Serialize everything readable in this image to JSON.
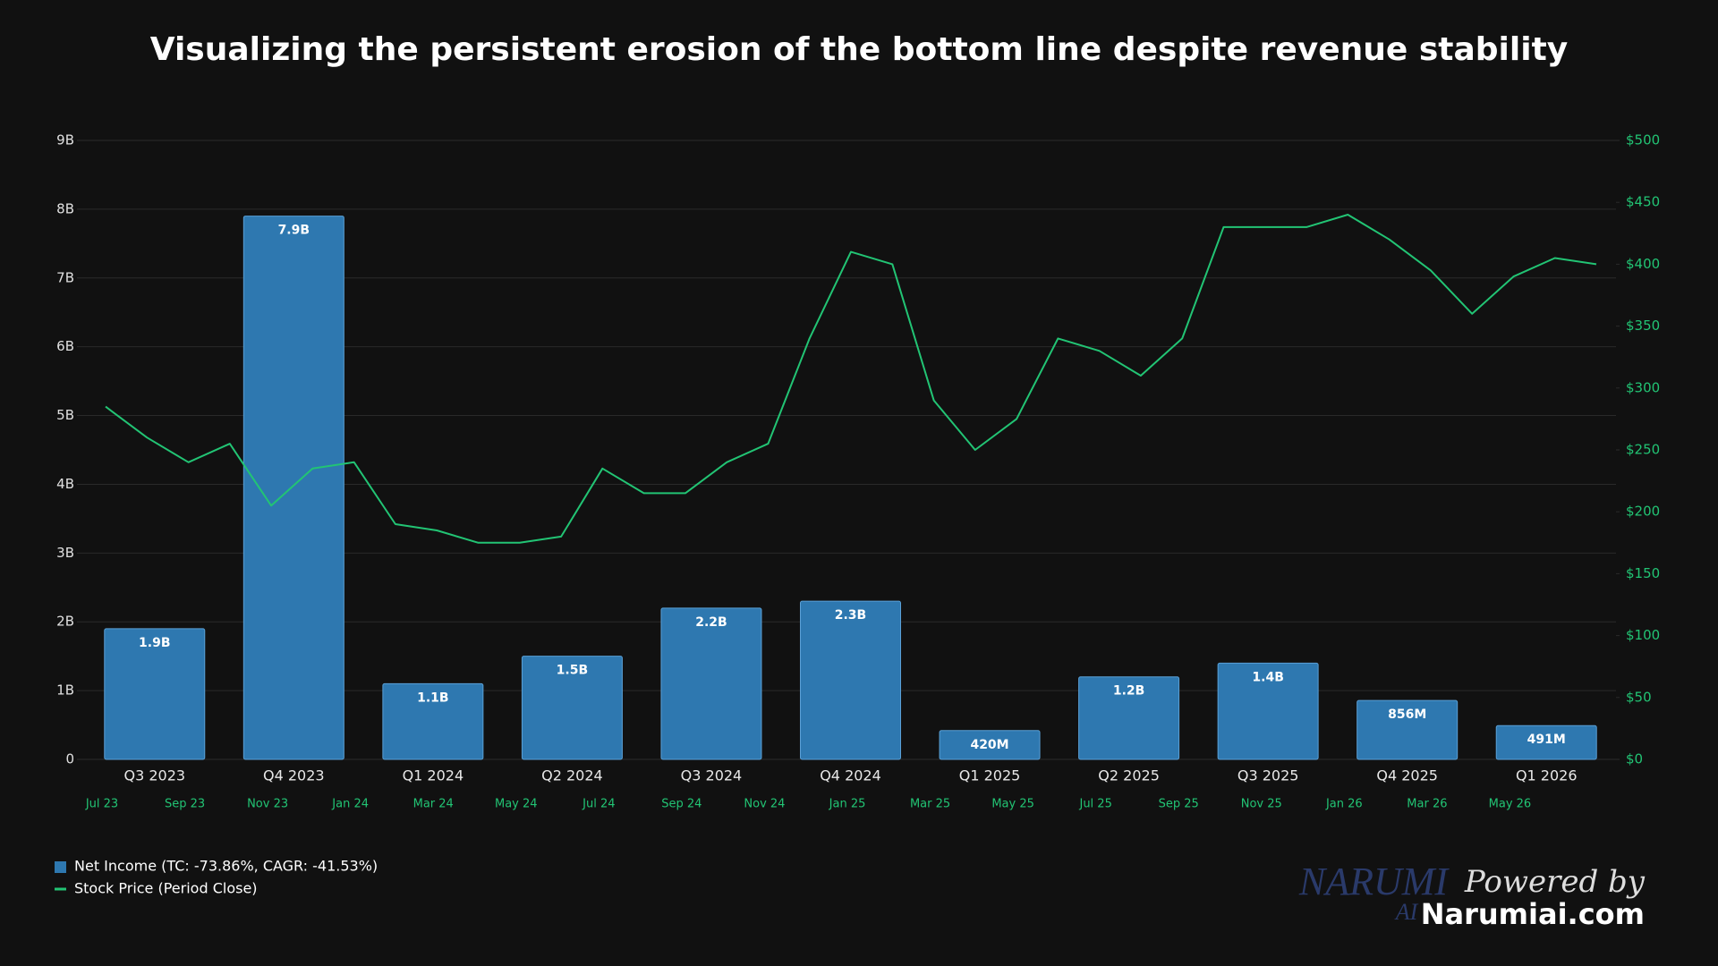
{
  "chart_data": {
    "type": "bar",
    "title": "Visualizing the persistent erosion of the bottom line despite revenue stability",
    "categories": [
      "Q3 2023",
      "Q4 2023",
      "Q1 2024",
      "Q2 2024",
      "Q3 2024",
      "Q4 2024",
      "Q1 2025",
      "Q2 2025",
      "Q3 2025",
      "Q4 2025",
      "Q1 2026"
    ],
    "series": [
      {
        "name": "Net Income (TC: -73.86%, CAGR: -41.53%)",
        "color": "#2e78b0",
        "values": [
          1900000000,
          7900000000,
          1100000000,
          1500000000,
          2200000000,
          2300000000,
          420000000,
          1200000000,
          1400000000,
          856000000,
          491000000
        ],
        "value_labels": [
          "1.9B",
          "7.9B",
          "1.1B",
          "1.5B",
          "2.2B",
          "2.3B",
          "420M",
          "1.2B",
          "1.4B",
          "856M",
          "491M"
        ]
      },
      {
        "name": "Stock Price (Period Close)",
        "type": "line",
        "axis": "y2",
        "color": "#22c474",
        "x": [
          "Jul 23",
          null,
          "Sep 23",
          null,
          "Nov 23",
          null,
          "Jan 24",
          null,
          "Mar 24",
          null,
          "May 24",
          null,
          "Jul 24",
          null,
          "Sep 24",
          null,
          "Nov 24",
          null,
          "Jan 25",
          null,
          "Mar 25",
          null,
          "May 25",
          null,
          "Jul 25",
          null,
          "Sep 25",
          null,
          "Nov 25",
          null,
          "Jan 26",
          null,
          "Mar 26",
          null,
          "May 26",
          null,
          null
        ],
        "values": [
          285,
          260,
          240,
          255,
          205,
          235,
          240,
          190,
          185,
          175,
          175,
          180,
          235,
          215,
          215,
          240,
          255,
          340,
          410,
          400,
          290,
          250,
          275,
          340,
          330,
          310,
          340,
          430,
          430,
          430,
          440,
          420,
          395,
          360,
          390,
          405,
          400
        ]
      }
    ],
    "ylim": [
      0,
      9000000000
    ],
    "yticks": [
      0,
      {
        "value": 1000000000,
        "label": "1B"
      },
      {
        "value": 2000000000,
        "label": "2B"
      },
      {
        "value": 3000000000,
        "label": "3B"
      },
      {
        "value": 4000000000,
        "label": "4B"
      },
      {
        "value": 5000000000,
        "label": "5B"
      },
      {
        "value": 6000000000,
        "label": "6B"
      },
      {
        "value": 7000000000,
        "label": "7B"
      },
      {
        "value": 8000000000,
        "label": "8B"
      },
      {
        "value": 9000000000,
        "label": "9B"
      }
    ],
    "y2lim": [
      0,
      500
    ],
    "y2ticks": [
      {
        "value": 0,
        "label": "$0"
      },
      {
        "value": 50,
        "label": "$50"
      },
      {
        "value": 100,
        "label": "$100"
      },
      {
        "value": 150,
        "label": "$150"
      },
      {
        "value": 200,
        "label": "$200"
      },
      {
        "value": 250,
        "label": "$250"
      },
      {
        "value": 300,
        "label": "$300"
      },
      {
        "value": 350,
        "label": "$350"
      },
      {
        "value": 400,
        "label": "$400"
      },
      {
        "value": 450,
        "label": "$450"
      },
      {
        "value": 500,
        "label": "$500"
      }
    ],
    "grid": true,
    "legend": "bottom-left"
  },
  "branding": {
    "logo": "NARUMI",
    "logo_sub": "AI",
    "powered": "Powered by",
    "site": "Narumiai.com"
  }
}
